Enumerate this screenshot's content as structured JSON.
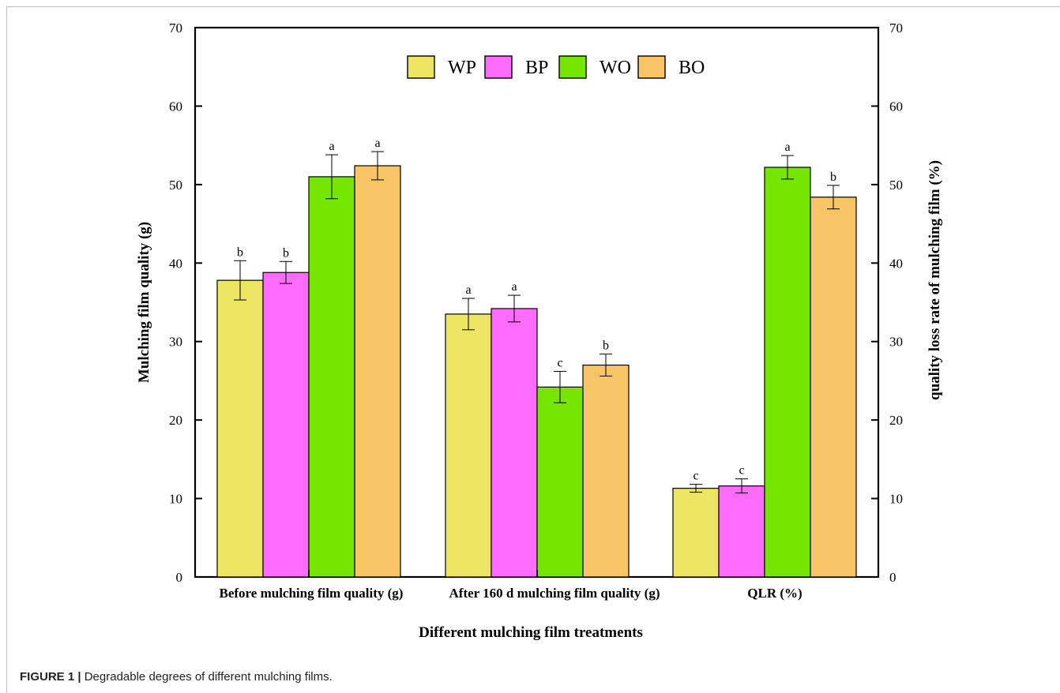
{
  "caption": {
    "label": "FIGURE 1 |",
    "text": "Degradable degrees of different mulching films."
  },
  "chart_data": {
    "type": "bar",
    "title": "",
    "xlabel": "Different mulching film treatments",
    "ylabel": "Mulching film quality (g)",
    "y2label": "quality loss rate of  mulching film (%)",
    "ylim": [
      0,
      70
    ],
    "y2lim": [
      0,
      70
    ],
    "yticks": [
      0,
      10,
      20,
      30,
      40,
      50,
      60,
      70
    ],
    "grid": false,
    "legend_position": "top-center",
    "categories": [
      "Before mulching  film quality  (g)",
      "After  160 d mulching film quality (g)",
      "QLR (%)"
    ],
    "series": [
      {
        "name": "WP",
        "color": "#EDE564",
        "values": [
          37.8,
          33.5,
          11.3
        ],
        "errors": [
          2.5,
          2.0,
          0.5
        ],
        "significance": [
          "b",
          "a",
          "c"
        ]
      },
      {
        "name": "BP",
        "color": "#FD6CFC",
        "values": [
          38.8,
          34.2,
          11.6
        ],
        "errors": [
          1.4,
          1.7,
          0.9
        ],
        "significance": [
          "b",
          "a",
          "c"
        ]
      },
      {
        "name": "WO",
        "color": "#76E600",
        "values": [
          51.0,
          24.2,
          52.2
        ],
        "errors": [
          2.8,
          2.0,
          1.5
        ],
        "significance": [
          "a",
          "c",
          "a"
        ]
      },
      {
        "name": "BO",
        "color": "#F7C565",
        "values": [
          52.4,
          27.0,
          48.4
        ],
        "errors": [
          1.8,
          1.4,
          1.5
        ],
        "significance": [
          "a",
          "b",
          "b"
        ]
      }
    ]
  }
}
